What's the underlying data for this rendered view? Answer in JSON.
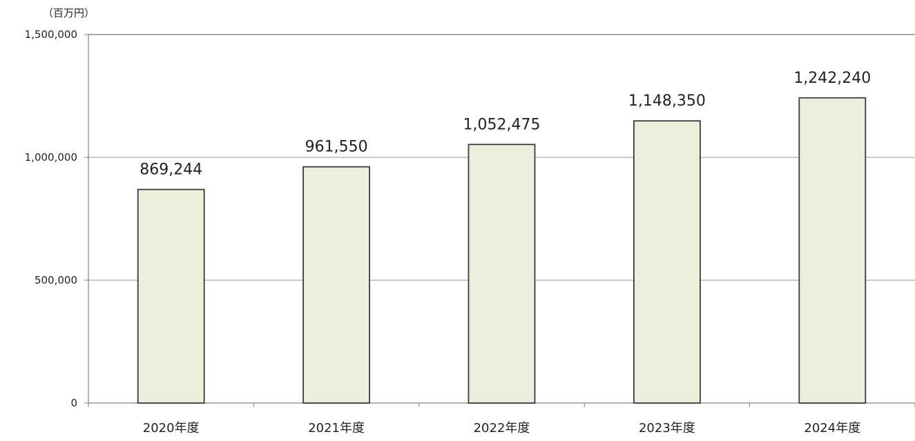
{
  "chart_data": {
    "type": "bar",
    "unit_label": "（百万円）",
    "categories": [
      "2020年度",
      "2021年度",
      "2022年度",
      "2023年度",
      "2024年度"
    ],
    "values": [
      869244,
      961550,
      1052475,
      1148350,
      1242240
    ],
    "value_labels": [
      "869,244",
      "961,550",
      "1,052,475",
      "1,148,350",
      "1,242,240"
    ],
    "ylim": [
      0,
      1500000
    ],
    "yticks": [
      0,
      500000,
      1000000,
      1500000
    ],
    "ytick_labels": [
      "0",
      "500,000",
      "1,000,000",
      "1,500,000"
    ],
    "grid": true,
    "legend": "none",
    "colors": {
      "bar_fill": "#ebf0dc",
      "bar_stroke": "#3a3a3a",
      "grid": "#a9a9a9",
      "frame": "#808080",
      "text": "#222222"
    }
  }
}
